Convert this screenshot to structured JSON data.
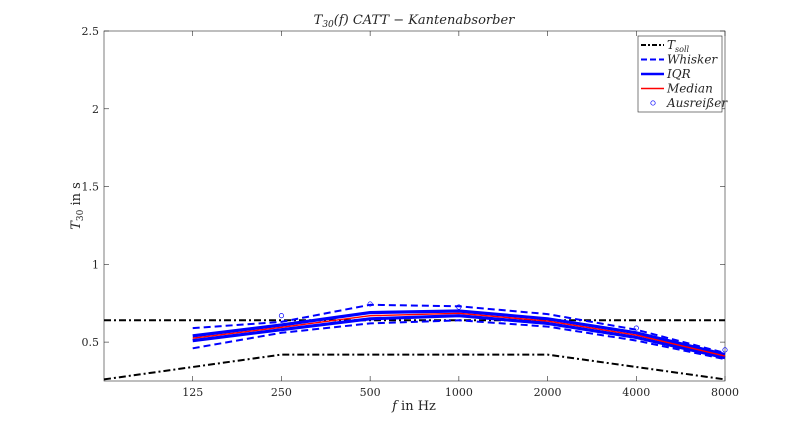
{
  "chart_data": {
    "type": "line",
    "title": "T30(f) CATT − Kantenabsorber",
    "title_parts": {
      "pre": "T",
      "sub": "30",
      "post": "(f) CATT − Kantenabsorber"
    },
    "xlabel": "f in Hz",
    "xlabel_parts": {
      "var": "f",
      "rest": " in Hz"
    },
    "ylabel": "T30 in s",
    "ylabel_parts": {
      "pre": "T",
      "sub": "30",
      "post": " in s"
    },
    "x_scale": "log",
    "x_ticks": [
      "125",
      "250",
      "500",
      "1000",
      "2000",
      "4000",
      "8000"
    ],
    "y_ticks": [
      "0.5",
      "1",
      "1.5",
      "2",
      "2.5"
    ],
    "xlim": [
      62.5,
      8000
    ],
    "ylim": [
      0.25,
      2.5
    ],
    "grid": false,
    "legend_position": "top-right",
    "legend": [
      {
        "key": "tsoll",
        "label": "T",
        "sub": "soll"
      },
      {
        "key": "whisker",
        "label": "Whisker",
        "sub": ""
      },
      {
        "key": "iqr",
        "label": "IQR",
        "sub": ""
      },
      {
        "key": "median",
        "label": "Median",
        "sub": ""
      },
      {
        "key": "outlier",
        "label": "Ausreißer",
        "sub": ""
      }
    ],
    "colors": {
      "tsoll": "#000000",
      "whisker": "#0000ff",
      "iqr": "#0000ff",
      "median": "#ff0000",
      "outlier": "#0000ff",
      "axis": "#262626"
    },
    "series": [
      {
        "key": "tsoll_upper",
        "style": "tsoll",
        "x": [
          62.5,
          8000
        ],
        "y": [
          0.64,
          0.64
        ]
      },
      {
        "key": "tsoll_lower",
        "style": "tsoll",
        "x": [
          62.5,
          250,
          2000,
          8000
        ],
        "y": [
          0.26,
          0.42,
          0.42,
          0.26
        ]
      },
      {
        "key": "whisker_upper",
        "style": "whisker",
        "x": [
          125,
          250,
          500,
          1000,
          2000,
          4000,
          8000
        ],
        "y": [
          0.59,
          0.63,
          0.74,
          0.73,
          0.68,
          0.58,
          0.43
        ]
      },
      {
        "key": "whisker_lower",
        "style": "whisker",
        "x": [
          125,
          250,
          500,
          1000,
          2000,
          4000,
          8000
        ],
        "y": [
          0.46,
          0.56,
          0.62,
          0.64,
          0.6,
          0.51,
          0.39
        ]
      },
      {
        "key": "iqr_upper",
        "style": "iqr",
        "x": [
          125,
          250,
          500,
          1000,
          2000,
          4000,
          8000
        ],
        "y": [
          0.54,
          0.61,
          0.69,
          0.7,
          0.65,
          0.56,
          0.42
        ]
      },
      {
        "key": "iqr_lower",
        "style": "iqr",
        "x": [
          125,
          250,
          500,
          1000,
          2000,
          4000,
          8000
        ],
        "y": [
          0.51,
          0.58,
          0.65,
          0.67,
          0.62,
          0.53,
          0.4
        ]
      },
      {
        "key": "median",
        "style": "median",
        "x": [
          125,
          250,
          500,
          1000,
          2000,
          4000,
          8000
        ],
        "y": [
          0.525,
          0.595,
          0.67,
          0.685,
          0.635,
          0.545,
          0.41
        ]
      }
    ],
    "outliers": [
      {
        "x": 250,
        "y": 0.67
      },
      {
        "x": 500,
        "y": 0.745
      },
      {
        "x": 1000,
        "y": 0.725
      },
      {
        "x": 4000,
        "y": 0.59
      },
      {
        "x": 8000,
        "y": 0.45
      }
    ]
  }
}
